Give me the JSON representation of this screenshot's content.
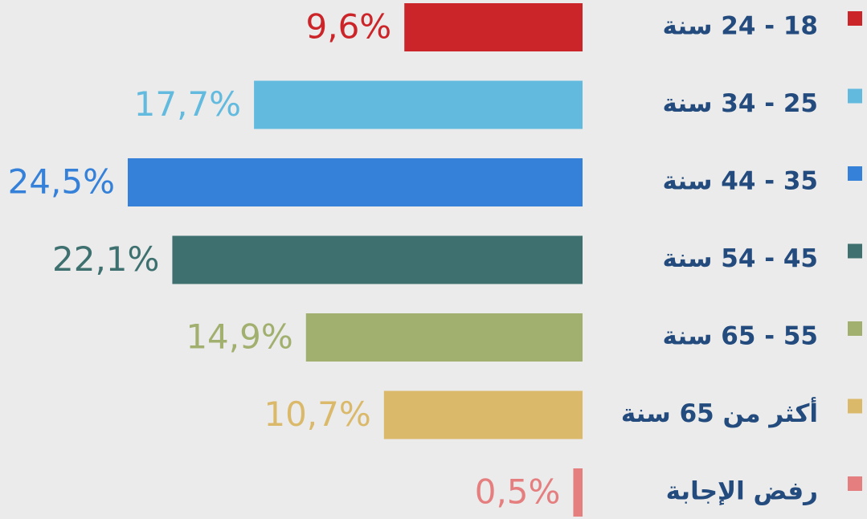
{
  "chart_data": {
    "type": "hbar",
    "categories": [
      "18 - 24 سنة",
      "25 - 34 سنة",
      "35 - 44 سنة",
      "45 - 54 سنة",
      "55 - 65 سنة",
      "أكثر من 65 سنة",
      "رفض الإجابة"
    ],
    "values": [
      9.6,
      17.7,
      24.5,
      22.1,
      14.9,
      10.7,
      0.5
    ],
    "value_labels": [
      "9,6%",
      "17,7%",
      "24,5%",
      "22,1%",
      "14,9%",
      "10,7%",
      "0,5%"
    ],
    "colors": [
      "#cc2529",
      "#62bbdf",
      "#3581d9",
      "#3e7070",
      "#a1b06f",
      "#dbb96b",
      "#e57f7f"
    ]
  }
}
